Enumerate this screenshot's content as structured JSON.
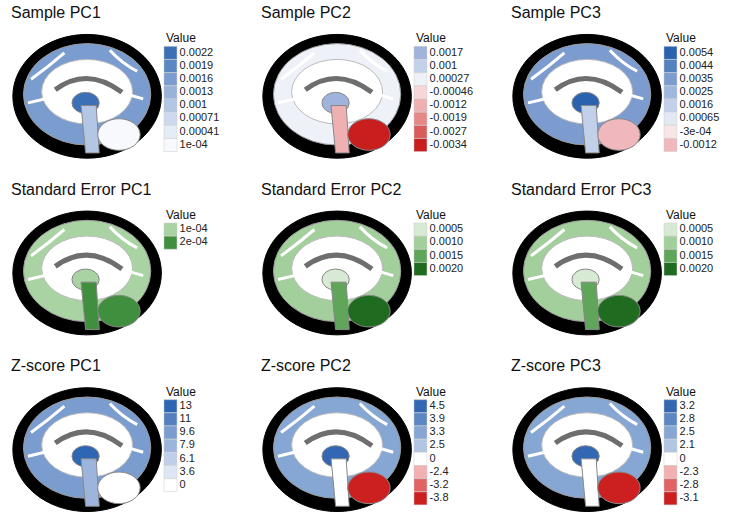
{
  "chart_data": [
    {
      "type": "brain_map",
      "title": "Sample PC1",
      "colorbar": {
        "title": "Value",
        "ticks": [
          0.0022,
          0.0019,
          0.0016,
          0.0013,
          0.001,
          0.00071,
          0.00041,
          {
            "value": 0.0001,
            "label": "1e-04"
          }
        ],
        "colors": [
          "#3b6fb6",
          "#5a86c2",
          "#7a9ccf",
          "#98b2da",
          "#b3c6e4",
          "#cdd9ee",
          "#e4ecf6",
          "#f7f9fc"
        ]
      }
    },
    {
      "type": "brain_map",
      "title": "Sample PC2",
      "colorbar": {
        "title": "Value",
        "ticks": [
          0.0017,
          0.001,
          0.00027,
          -0.00046,
          -0.0012,
          -0.0019,
          -0.0027,
          -0.0034
        ],
        "colors": [
          "#9fb3dc",
          "#c4d1ea",
          "#eef1f8",
          "#f6d6d6",
          "#eeb0b0",
          "#e48888",
          "#d95c5c",
          "#c81e1e"
        ]
      }
    },
    {
      "type": "brain_map",
      "title": "Sample PC3",
      "colorbar": {
        "title": "Value",
        "ticks": [
          0.0054,
          0.0044,
          0.0035,
          0.0025,
          0.0016,
          0.00065,
          {
            "value": -0.0003,
            "label": "-3e-04"
          },
          -0.0012
        ],
        "colors": [
          "#2a62b0",
          "#5581c0",
          "#7c9ccf",
          "#a0b7dd",
          "#c2d0ea",
          "#e2e9f4",
          "#f8e6e6",
          "#f0b8bc"
        ]
      }
    },
    {
      "type": "brain_map",
      "title": "Standard Error PC1",
      "colorbar": {
        "title": "Value",
        "ticks": [
          {
            "value": 0.0001,
            "label": "1e-04"
          },
          {
            "value": 0.0002,
            "label": "2e-04"
          }
        ],
        "colors": [
          "#a9d3a3",
          "#3f8f3f"
        ]
      }
    },
    {
      "type": "brain_map",
      "title": "Standard Error PC2",
      "colorbar": {
        "title": "Value",
        "ticks": [
          0.0005,
          {
            "value": 0.001,
            "label": "0.0010"
          },
          0.0015,
          {
            "value": 0.002,
            "label": "0.0020"
          }
        ],
        "colors": [
          "#d7ead3",
          "#a3cf9c",
          "#5fa55a",
          "#1f6b1f"
        ]
      }
    },
    {
      "type": "brain_map",
      "title": "Standard Error PC3",
      "colorbar": {
        "title": "Value",
        "ticks": [
          0.0005,
          {
            "value": 0.001,
            "label": "0.0010"
          },
          0.0015,
          {
            "value": 0.002,
            "label": "0.0020"
          }
        ],
        "colors": [
          "#d7ead3",
          "#a3cf9c",
          "#5fa55a",
          "#1f6b1f"
        ]
      }
    },
    {
      "type": "brain_map",
      "title": "Z-score PC1",
      "colorbar": {
        "title": "Value",
        "ticks": [
          13,
          11,
          9.6,
          7.9,
          6.1,
          3.6,
          0
        ],
        "colors": [
          "#2f66b3",
          "#5480c0",
          "#7a9ccf",
          "#9db5dc",
          "#bfcfe9",
          "#dde6f3",
          "#ffffff"
        ]
      }
    },
    {
      "type": "brain_map",
      "title": "Z-score PC2",
      "colorbar": {
        "title": "Value",
        "ticks": [
          4.5,
          3.9,
          3.3,
          2.5,
          0,
          -2.4,
          -3.2,
          -3.8
        ],
        "colors": [
          "#3467b3",
          "#5c87c4",
          "#86a6d4",
          "#b2c6e4",
          "#ffffff",
          "#f2b0b0",
          "#e06464",
          "#cc2020"
        ]
      }
    },
    {
      "type": "brain_map",
      "title": "Z-score PC3",
      "colorbar": {
        "title": "Value",
        "ticks": [
          3.2,
          2.8,
          2.5,
          2.1,
          0,
          -2.3,
          -2.8,
          -3.1
        ],
        "colors": [
          "#3467b3",
          "#5c87c4",
          "#86a6d4",
          "#b2c6e4",
          "#ffffff",
          "#f2b0b0",
          "#e06464",
          "#cc2020"
        ]
      }
    }
  ]
}
